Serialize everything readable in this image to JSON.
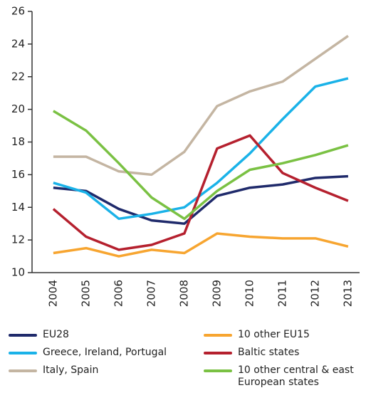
{
  "chart_data": {
    "type": "line",
    "x": [
      "2004",
      "2005",
      "2006",
      "2007",
      "2008",
      "2009",
      "2010",
      "2011",
      "2012",
      "2013"
    ],
    "ylim": [
      10,
      26
    ],
    "yticks": [
      10,
      12,
      14,
      16,
      18,
      20,
      22,
      24,
      26
    ],
    "series": [
      {
        "name": "EU28",
        "color": "#1f2a6b",
        "values": [
          15.2,
          15.0,
          13.9,
          13.2,
          13.0,
          14.7,
          15.2,
          15.4,
          15.8,
          15.9
        ]
      },
      {
        "name": "10 other EU15",
        "color": "#f7a530",
        "values": [
          11.2,
          11.5,
          11.0,
          11.4,
          11.2,
          12.4,
          12.2,
          12.1,
          12.1,
          11.6
        ]
      },
      {
        "name": "Greece, Ireland, Portugal",
        "color": "#1ab2e8",
        "values": [
          15.5,
          14.9,
          13.3,
          13.6,
          14.0,
          15.5,
          17.3,
          19.4,
          21.4,
          21.9
        ]
      },
      {
        "name": "Baltic states",
        "color": "#b5202e",
        "values": [
          13.9,
          12.2,
          11.4,
          11.7,
          12.4,
          17.6,
          18.4,
          16.1,
          15.2,
          14.4
        ]
      },
      {
        "name": "Italy, Spain",
        "color": "#c4b5a2",
        "values": [
          17.1,
          17.1,
          16.2,
          16.0,
          17.4,
          20.2,
          21.1,
          21.7,
          23.1,
          24.5
        ]
      },
      {
        "name": "10 other central & east European states",
        "color": "#7ac143",
        "values": [
          19.9,
          18.7,
          16.7,
          14.6,
          13.3,
          15.0,
          16.3,
          16.7,
          17.2,
          17.8
        ]
      }
    ]
  }
}
